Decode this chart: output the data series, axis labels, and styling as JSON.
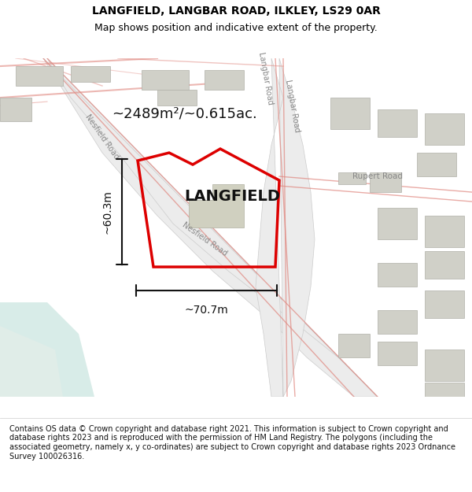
{
  "title": "LANGFIELD, LANGBAR ROAD, ILKLEY, LS29 0AR",
  "subtitle": "Map shows position and indicative extent of the property.",
  "footer": "Contains OS data © Crown copyright and database right 2021. This information is subject to Crown copyright and database rights 2023 and is reproduced with the permission of HM Land Registry. The polygons (including the associated geometry, namely x, y co-ordinates) are subject to Crown copyright and database rights 2023 Ordnance Survey 100026316.",
  "area_label": "~2489m²/~0.615ac.",
  "property_name": "LANGFIELD",
  "dim_width": "~70.7m",
  "dim_height": "~60.3m",
  "bg_color": "#f5f5f0",
  "map_bg": "#f8f8f5",
  "road_color": "#f0c8c0",
  "road_stroke": "#e08880",
  "building_color": "#d0d0c8",
  "building_stroke": "#b0b0a8",
  "highlight_color": "#e8e8e0",
  "water_color": "#c8e8e0",
  "property_fill": "none",
  "property_stroke": "#dd0000",
  "property_lw": 2.5,
  "dim_line_color": "#111111",
  "text_color": "#111111",
  "road_label_color": "#888888"
}
